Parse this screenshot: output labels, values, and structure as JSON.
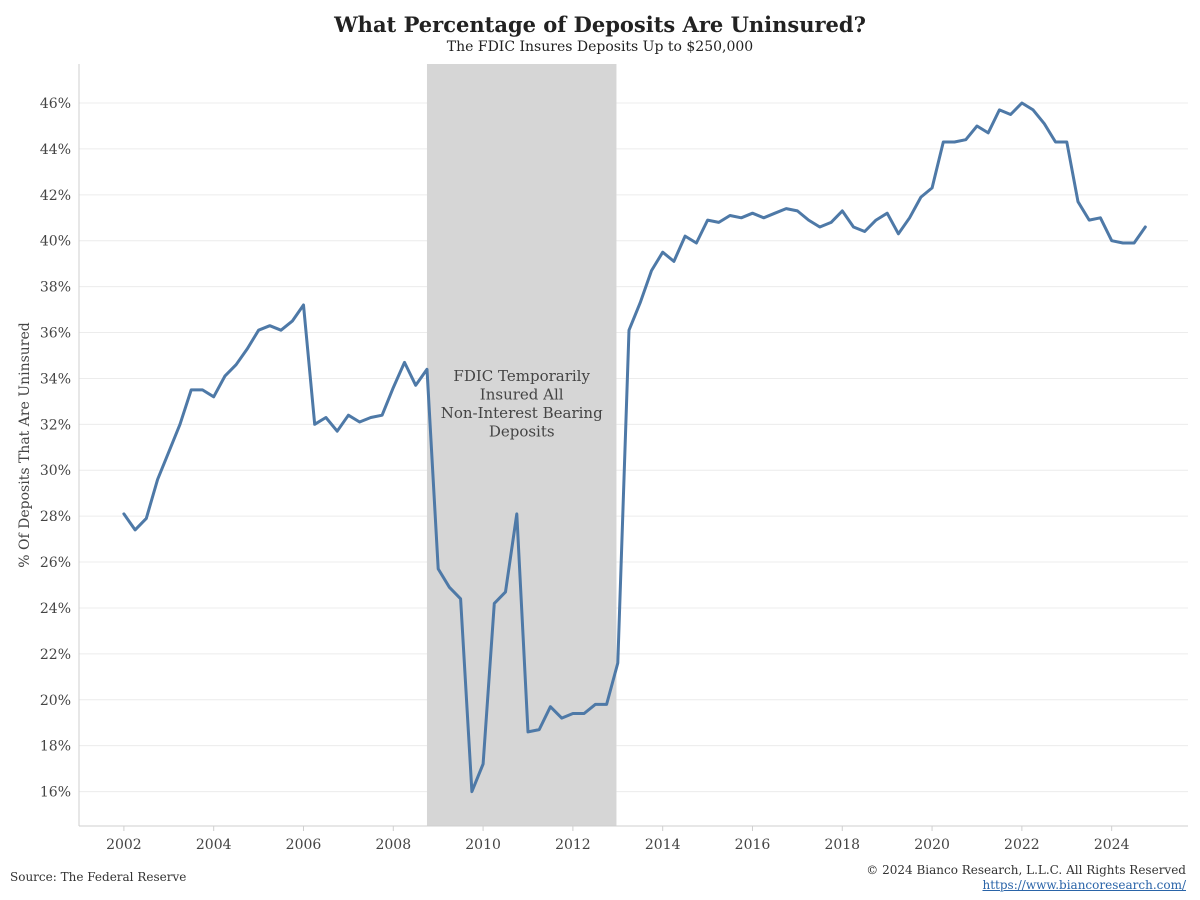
{
  "header": {
    "title": "What Percentage of Deposits Are Uninsured?",
    "subtitle": "The FDIC Insures Deposits Up to $250,000"
  },
  "footer": {
    "source": "Source: The Federal Reserve",
    "copyright": "© 2024 Bianco Research, L.L.C. All Rights Reserved",
    "url": "https://www.biancoresearch.com/"
  },
  "colors": {
    "line": "#4e79a7",
    "shade": "#d6d6d6",
    "grid": "#ececec"
  },
  "chart_data": {
    "type": "line",
    "title": "What Percentage of Deposits Are Uninsured?",
    "subtitle": "The FDIC Insures Deposits Up to $250,000",
    "ylabel": "% Of Deposits That Are Uninsured",
    "xlabel": "",
    "xlim": [
      2001.0,
      2025.7
    ],
    "ylim": [
      14.5,
      47.7
    ],
    "x_ticks": [
      2002,
      2004,
      2006,
      2008,
      2010,
      2012,
      2014,
      2016,
      2018,
      2020,
      2022,
      2024
    ],
    "y_ticks": [
      16,
      18,
      20,
      22,
      24,
      26,
      28,
      30,
      32,
      34,
      36,
      38,
      40,
      42,
      44,
      46
    ],
    "y_tick_labels": [
      "16%",
      "18%",
      "20%",
      "22%",
      "24%",
      "26%",
      "28%",
      "30%",
      "32%",
      "34%",
      "36%",
      "38%",
      "40%",
      "42%",
      "44%",
      "46%"
    ],
    "grid": "horizontal",
    "shaded_region": {
      "x_start": 2008.75,
      "x_end": 2012.97,
      "label_lines": [
        "FDIC Temporarily",
        "Insured All",
        "Non-Interest Bearing",
        "Deposits"
      ]
    },
    "series": [
      {
        "x": [
          2002.0,
          2002.25,
          2002.5,
          2002.75,
          2003.0,
          2003.25,
          2003.5,
          2003.75,
          2004.0,
          2004.25,
          2004.5,
          2004.75,
          2005.0,
          2005.25,
          2005.5,
          2005.75,
          2006.0,
          2006.25,
          2006.5,
          2006.75,
          2007.0,
          2007.25,
          2007.5,
          2007.75,
          2008.0,
          2008.25,
          2008.5,
          2008.75,
          2009.0,
          2009.25,
          2009.5,
          2009.75,
          2010.0,
          2010.25,
          2010.5,
          2010.75,
          2011.0,
          2011.25,
          2011.5,
          2011.75,
          2012.0,
          2012.25,
          2012.5,
          2012.75,
          2013.0,
          2013.25,
          2013.5,
          2013.75,
          2014.0,
          2014.25,
          2014.5,
          2014.75,
          2015.0,
          2015.25,
          2015.5,
          2015.75,
          2016.0,
          2016.25,
          2016.5,
          2016.75,
          2017.0,
          2017.25,
          2017.5,
          2017.75,
          2018.0,
          2018.25,
          2018.5,
          2018.75,
          2019.0,
          2019.25,
          2019.5,
          2019.75,
          2020.0,
          2020.25,
          2020.5,
          2020.75,
          2021.0,
          2021.25,
          2021.5,
          2021.75,
          2022.0,
          2022.25,
          2022.5,
          2022.75,
          2023.0,
          2023.25,
          2023.5,
          2023.75,
          2024.0,
          2024.25,
          2024.5,
          2024.75
        ],
        "values": [
          28.1,
          27.4,
          27.9,
          29.6,
          30.8,
          32.0,
          33.5,
          33.5,
          33.2,
          34.1,
          34.6,
          35.3,
          36.1,
          36.3,
          36.1,
          36.5,
          37.2,
          32.0,
          32.3,
          31.7,
          32.4,
          32.1,
          32.3,
          32.4,
          33.6,
          34.7,
          33.7,
          34.4,
          25.7,
          24.9,
          24.4,
          16.0,
          17.2,
          24.2,
          24.7,
          28.1,
          18.6,
          18.7,
          19.7,
          19.2,
          19.4,
          19.4,
          19.8,
          19.8,
          21.6,
          36.1,
          37.3,
          38.7,
          39.5,
          39.1,
          40.2,
          39.9,
          40.9,
          40.8,
          41.1,
          41.0,
          41.2,
          41.0,
          41.2,
          41.4,
          41.3,
          40.9,
          40.6,
          40.8,
          41.3,
          40.6,
          40.4,
          40.9,
          41.2,
          40.3,
          41.0,
          41.9,
          42.3,
          44.3,
          44.3,
          44.4,
          45.0,
          44.7,
          45.7,
          45.5,
          46.0,
          45.7,
          45.1,
          44.3,
          44.3,
          41.7,
          40.9,
          41.0,
          40.0,
          39.9,
          39.9,
          40.6
        ]
      }
    ]
  }
}
